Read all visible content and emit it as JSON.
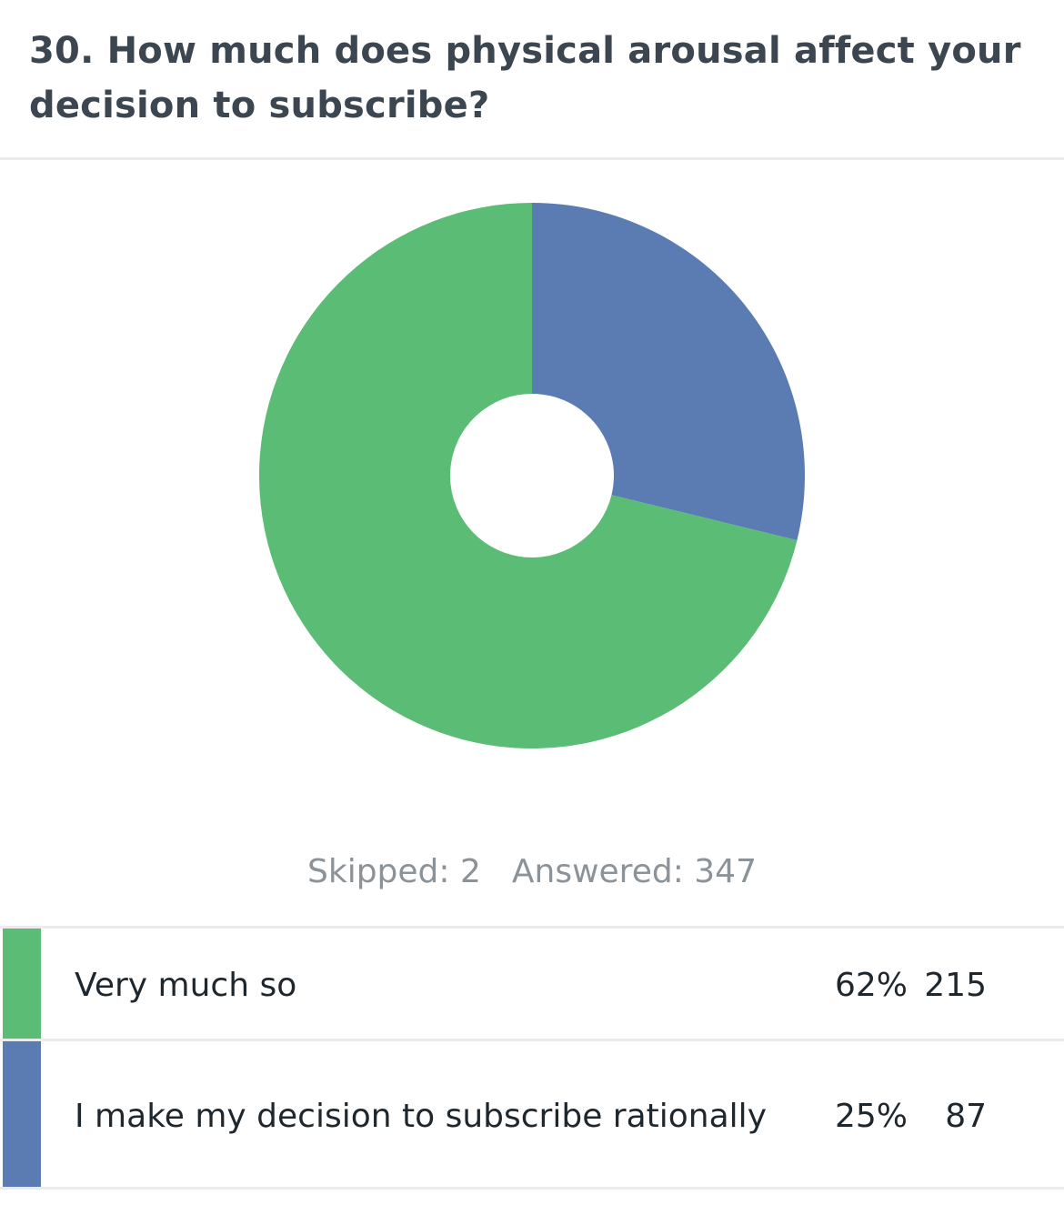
{
  "question": {
    "title": "30. How much does physical arousal affect your decision to subscribe?"
  },
  "stats": {
    "skipped_label": "Skipped: 2",
    "answered_label": "Answered: 347"
  },
  "legend": [
    {
      "label": "Very much so",
      "percent": "62%",
      "count": "215",
      "color": "#5bbc76"
    },
    {
      "label": "I make my decision to subscribe rationally",
      "percent": "25%",
      "count": "87",
      "color": "#5b7bb3"
    }
  ],
  "chart_data": {
    "type": "pie",
    "donut": true,
    "categories": [
      "Very much so",
      "I make my decision to subscribe rationally"
    ],
    "values": [
      215,
      87
    ],
    "percents": [
      62,
      25
    ],
    "colors": [
      "#5bbc76",
      "#5b7bb3"
    ],
    "title": "30. How much does physical arousal affect your decision to subscribe?",
    "legend": "bottom"
  }
}
